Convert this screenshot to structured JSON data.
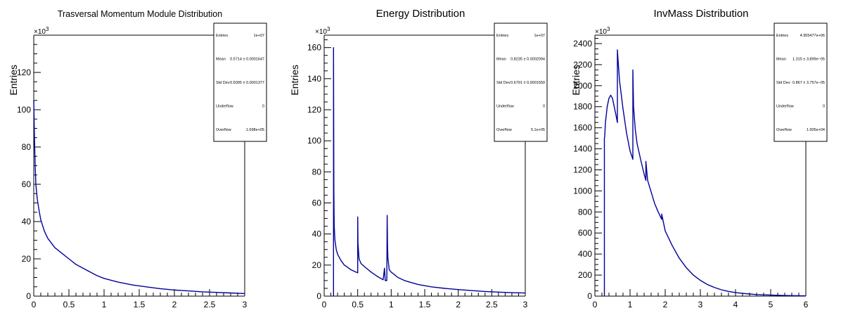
{
  "colors": {
    "series": "#000099",
    "frame": "#000000",
    "background": "#ffffff"
  },
  "chart_data": [
    {
      "type": "histogram",
      "title": "Trasversal Momentum Module Distribution",
      "ylabel": "Entries",
      "xlabel": "",
      "exponent_label": "×10",
      "exponent_sup": "3",
      "xlim": [
        0,
        3
      ],
      "ylim": [
        0,
        140
      ],
      "xticks": [
        "0",
        "0.5",
        "1",
        "1.5",
        "2",
        "2.5",
        "3"
      ],
      "yticks": [
        "0",
        "20",
        "40",
        "60",
        "80",
        "100",
        "120"
      ],
      "xtick_values": [
        0,
        0.5,
        1,
        1.5,
        2,
        2.5,
        3
      ],
      "ytick_values": [
        0,
        20,
        40,
        60,
        80,
        100,
        120
      ],
      "series": [
        {
          "x": [
            0,
            0.01,
            0.02,
            0.03,
            0.05,
            0.08,
            0.1,
            0.15,
            0.2,
            0.3,
            0.4,
            0.5,
            0.6,
            0.7,
            0.8,
            0.9,
            1.0,
            1.2,
            1.4,
            1.6,
            1.8,
            2.0,
            2.2,
            2.4,
            2.6,
            2.8,
            3.0
          ],
          "y": [
            105,
            85,
            70,
            60,
            52,
            45,
            41,
            35,
            31,
            26,
            23,
            20,
            17,
            15,
            13,
            11,
            9.5,
            7.5,
            6,
            5,
            4,
            3.3,
            2.8,
            2.3,
            2,
            1.7,
            1.4
          ]
        }
      ],
      "stats": [
        {
          "label": "Entries",
          "value": "1e+07"
        },
        {
          "label": "Mean",
          "value": "0.5714 ± 0.0001647"
        },
        {
          "label": "Std Dev",
          "value": "0.5095 ± 0.0001377"
        },
        {
          "label": "Underflow",
          "value": "0"
        },
        {
          "label": "Overflow",
          "value": "1.698e+05"
        }
      ],
      "grid": false
    },
    {
      "type": "histogram",
      "title": "Energy Distribution",
      "ylabel": "Entries",
      "xlabel": "",
      "exponent_label": "×10",
      "exponent_sup": "3",
      "xlim": [
        0,
        3
      ],
      "ylim": [
        0,
        168
      ],
      "xticks": [
        "0",
        "0.5",
        "1",
        "1.5",
        "2",
        "2.5",
        "3"
      ],
      "yticks": [
        "0",
        "20",
        "40",
        "60",
        "80",
        "100",
        "120",
        "140",
        "160"
      ],
      "xtick_values": [
        0,
        0.5,
        1,
        1.5,
        2,
        2.5,
        3
      ],
      "ytick_values": [
        0,
        20,
        40,
        60,
        80,
        100,
        120,
        140,
        160
      ],
      "series": [
        {
          "x": [
            0.14,
            0.14,
            0.145,
            0.15,
            0.16,
            0.18,
            0.2,
            0.25,
            0.3,
            0.35,
            0.4,
            0.45,
            0.5,
            0.5,
            0.505,
            0.52,
            0.55,
            0.6,
            0.7,
            0.8,
            0.88,
            0.9,
            0.91,
            0.935,
            0.94,
            0.945,
            0.95,
            0.97,
            1.0,
            1.1,
            1.2,
            1.4,
            1.6,
            1.8,
            2.0,
            2.2,
            2.4,
            2.6,
            2.8,
            3.0
          ],
          "y": [
            0,
            160,
            67,
            45,
            36,
            30,
            27,
            23,
            20,
            18.5,
            17,
            16,
            15,
            51,
            34,
            24,
            21,
            19,
            15.5,
            12.5,
            10.5,
            18,
            10,
            10,
            52,
            33,
            25,
            17,
            15.5,
            12,
            10,
            7.5,
            6,
            5,
            4.2,
            3.6,
            3,
            2.6,
            2.2,
            2
          ]
        }
      ],
      "stats": [
        {
          "label": "Entries",
          "value": "1e+07"
        },
        {
          "label": "Mean",
          "value": "0.8235 ± 0.0002094"
        },
        {
          "label": "Std Dev",
          "value": "0.6791 ± 0.0001559"
        },
        {
          "label": "Underflow",
          "value": "0"
        },
        {
          "label": "Overflow",
          "value": "5.1e+05"
        }
      ],
      "grid": false
    },
    {
      "type": "histogram",
      "title": "InvMass Distribution",
      "ylabel": "Entries",
      "xlabel": "",
      "exponent_label": "×10",
      "exponent_sup": "3",
      "xlim": [
        0,
        6
      ],
      "ylim": [
        0,
        2480
      ],
      "xticks": [
        "0",
        "1",
        "2",
        "3",
        "4",
        "5",
        "6"
      ],
      "yticks": [
        "0",
        "200",
        "400",
        "600",
        "800",
        "1000",
        "1200",
        "1400",
        "1600",
        "1800",
        "2000",
        "2200",
        "2400"
      ],
      "xtick_values": [
        0,
        1,
        2,
        3,
        4,
        5,
        6
      ],
      "ytick_values": [
        0,
        200,
        400,
        600,
        800,
        1000,
        1200,
        1400,
        1600,
        1800,
        2000,
        2200,
        2400
      ],
      "series": [
        {
          "x": [
            0.27,
            0.27,
            0.28,
            0.3,
            0.35,
            0.4,
            0.45,
            0.5,
            0.55,
            0.6,
            0.64,
            0.64,
            0.66,
            0.7,
            0.8,
            0.9,
            1.0,
            1.08,
            1.08,
            1.1,
            1.15,
            1.2,
            1.3,
            1.4,
            1.45,
            1.45,
            1.5,
            1.6,
            1.7,
            1.8,
            1.9,
            1.9,
            1.95,
            2.0,
            2.2,
            2.4,
            2.6,
            2.8,
            3.0,
            3.2,
            3.4,
            3.6,
            3.8,
            4.0,
            4.2,
            4.4,
            4.6,
            4.8,
            5.0,
            5.2,
            5.4,
            5.6,
            5.8,
            6.0
          ],
          "y": [
            0,
            1500,
            1520,
            1650,
            1800,
            1880,
            1910,
            1880,
            1800,
            1720,
            1650,
            2340,
            2240,
            2050,
            1780,
            1550,
            1380,
            1300,
            2150,
            1800,
            1580,
            1450,
            1300,
            1160,
            1100,
            1280,
            1100,
            990,
            880,
            800,
            730,
            780,
            700,
            620,
            480,
            360,
            270,
            200,
            150,
            110,
            82,
            60,
            45,
            34,
            26,
            20,
            15,
            12,
            10,
            8,
            6,
            5,
            4,
            3
          ]
        }
      ],
      "stats": [
        {
          "label": "Entries",
          "value": "4.955477e+06"
        },
        {
          "label": "Mean",
          "value": "1.315 ± 3.899e−05"
        },
        {
          "label": "Std Dev",
          "value": "0.867 ± 3.757e−05"
        },
        {
          "label": "Underflow",
          "value": "0"
        },
        {
          "label": "Overflow",
          "value": "1.905e+04"
        }
      ],
      "grid": false
    }
  ]
}
